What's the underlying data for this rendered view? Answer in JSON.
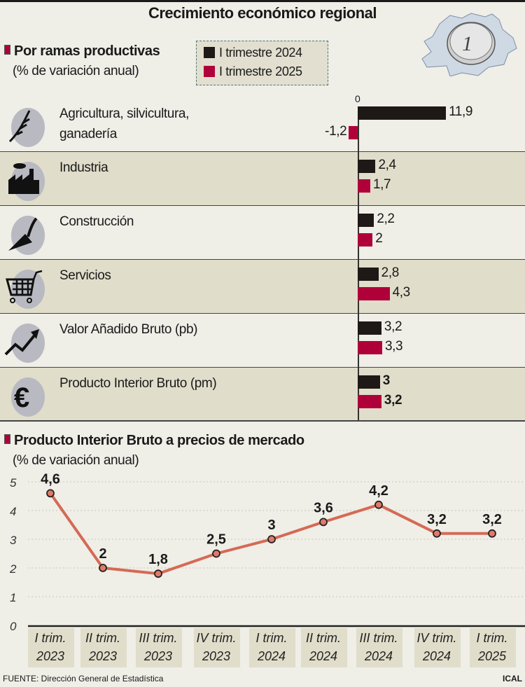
{
  "title": "Crecimiento económico regional",
  "colors": {
    "series_2024": "#1e1816",
    "series_2025": "#b0003a",
    "line": "#d56a55",
    "accent": "#b0003a"
  },
  "chart_data": [
    {
      "type": "bar",
      "orientation": "horizontal",
      "title": "Por ramas productivas",
      "subtitle": "(% de variación anual)",
      "zero_label": "0",
      "legend": [
        "I trimestre 2024",
        "I trimestre 2025"
      ],
      "legend_placement": "top",
      "categories": [
        {
          "label": "Agricultura, silvicultura, ganadería",
          "icon": "wheat-icon"
        },
        {
          "label": "Industria",
          "icon": "factory-icon"
        },
        {
          "label": "Construcción",
          "icon": "trowel-icon"
        },
        {
          "label": "Servicios",
          "icon": "shopping-cart-icon"
        },
        {
          "label": "Valor Añadido Bruto (pb)",
          "icon": "trend-up-icon"
        },
        {
          "label": "Producto Interior Bruto (pm)",
          "icon": "euro-icon"
        }
      ],
      "series": [
        {
          "name": "I trimestre 2024",
          "values": [
            11.9,
            2.4,
            2.2,
            2.8,
            3.2,
            3
          ],
          "labels": [
            "11,9",
            "2,4",
            "2,2",
            "2,8",
            "3,2",
            "3"
          ]
        },
        {
          "name": "I trimestre 2025",
          "values": [
            -1.2,
            1.7,
            2,
            4.3,
            3.3,
            3.2
          ],
          "labels": [
            "-1,2",
            "1,7",
            "2",
            "4,3",
            "3,3",
            "3,2"
          ]
        }
      ]
    },
    {
      "type": "line",
      "title": "Producto Interior Bruto a precios de mercado",
      "subtitle": "(% de variación anual)",
      "categories": [
        [
          "I trim.",
          "2023"
        ],
        [
          "II trim.",
          "2023"
        ],
        [
          "III trim.",
          "2023"
        ],
        [
          "IV trim.",
          "2023"
        ],
        [
          "I trim.",
          "2024"
        ],
        [
          "II trim.",
          "2024"
        ],
        [
          "III trim.",
          "2024"
        ],
        [
          "IV trim.",
          "2024"
        ],
        [
          "I trim.",
          "2025"
        ]
      ],
      "values": [
        4.6,
        2,
        1.8,
        2.5,
        3,
        3.6,
        4.2,
        3.2,
        3.2
      ],
      "labels": [
        "4,6",
        "2",
        "1,8",
        "2,5",
        "3",
        "3,6",
        "4,2",
        "3,2",
        "3,2"
      ],
      "ylim": [
        0,
        5
      ],
      "yticks": [
        "0",
        "1",
        "2",
        "3",
        "4",
        "5"
      ],
      "grid": true
    }
  ],
  "footer": {
    "source": "FUENTE: Dirección General de Estadística",
    "credit": "ICAL"
  }
}
